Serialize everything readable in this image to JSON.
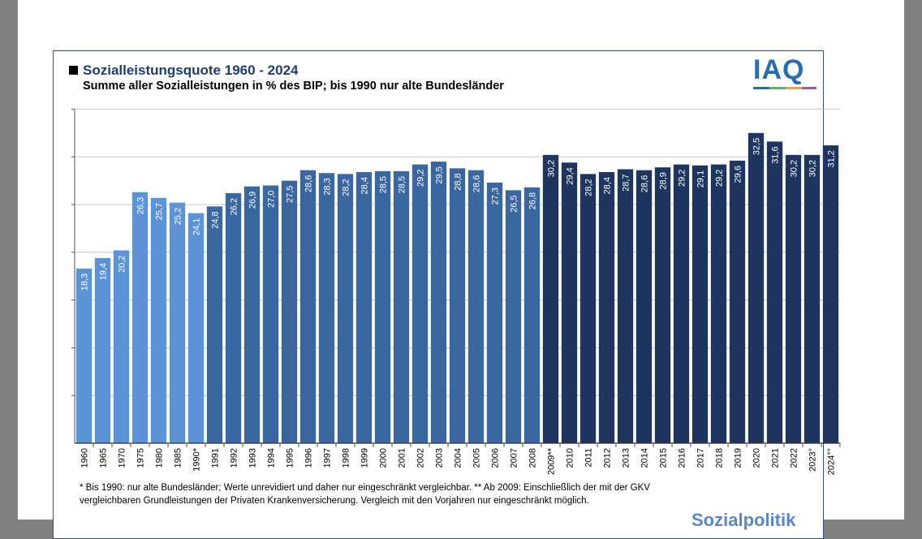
{
  "header": {
    "title": "Sozialleistungsquote 1960 - 2024",
    "subtitle": "Summe aller Sozialleistungen in % des BIP; bis 1990 nur alte Bundesländer",
    "logo_text": "IAQ"
  },
  "footnote": "* Bis 1990: nur alte Bundesländer; Werte unrevidiert und daher nur eingeschränkt vergleichbar. ** Ab 2009: Einschließlich der mit der GKV vergleichbaren Grundleistungen der Privaten Krankenversicherung. Vergleich mit den  Vorjahren nur eingeschränkt möglich.",
  "footer_logo": "Sozialpolitik",
  "colors": {
    "period1": "#5b93d6",
    "period2": "#3a679f",
    "period3": "#1e365f",
    "grid": "#c8c8c8",
    "frame": "#2f4f86"
  },
  "chart_data": {
    "type": "bar",
    "title": "Sozialleistungsquote 1960 - 2024",
    "subtitle": "Summe aller Sozialleistungen in % des BIP; bis 1990 nur alte Bundesländer",
    "xlabel": "",
    "ylabel": "",
    "ylim": [
      0,
      35
    ],
    "grid": true,
    "categories": [
      "1960",
      "1965",
      "1970",
      "1975",
      "1980",
      "1985",
      "1990*",
      "1991",
      "1992",
      "1993",
      "1994",
      "1995",
      "1996",
      "1997",
      "1998",
      "1999",
      "2000",
      "2001",
      "2002",
      "2003",
      "2004",
      "2005",
      "2006",
      "2007",
      "2008",
      "2009**",
      "2010",
      "2011",
      "2012",
      "2013",
      "2014",
      "2015",
      "2016",
      "2017",
      "2018",
      "2019",
      "2020",
      "2021",
      "2022",
      "2023°",
      "2024°°"
    ],
    "values": [
      18.3,
      19.4,
      20.2,
      26.3,
      25.7,
      25.2,
      24.1,
      24.8,
      26.2,
      26.9,
      27.0,
      27.5,
      28.6,
      28.3,
      28.2,
      28.4,
      28.5,
      28.5,
      29.2,
      29.5,
      28.8,
      28.6,
      27.3,
      26.5,
      26.8,
      30.2,
      29.4,
      28.2,
      28.4,
      28.7,
      28.6,
      28.9,
      29.2,
      29.1,
      29.2,
      29.6,
      32.5,
      31.6,
      30.2,
      30.2,
      31.2
    ],
    "value_labels": [
      "18,3",
      "19,4",
      "20,2",
      "26,3",
      "25,7",
      "25,2",
      "24,1",
      "24,8",
      "26,2",
      "26,9",
      "27,0",
      "27,5",
      "28,6",
      "28,3",
      "28,2",
      "28,4",
      "28,5",
      "28,5",
      "29,2",
      "29,5",
      "28,8",
      "28,6",
      "27,3",
      "26,5",
      "26,8",
      "30,2",
      "29,4",
      "28,2",
      "28,4",
      "28,7",
      "28,6",
      "28,9",
      "29,2",
      "29,1",
      "29,2",
      "29,6",
      "32,5",
      "31,6",
      "30,2",
      "30,2",
      "31,2"
    ],
    "groups": [
      1,
      1,
      1,
      1,
      1,
      1,
      1,
      2,
      2,
      2,
      2,
      2,
      2,
      2,
      2,
      2,
      2,
      2,
      2,
      2,
      2,
      2,
      2,
      2,
      2,
      3,
      3,
      3,
      3,
      3,
      3,
      3,
      3,
      3,
      3,
      3,
      3,
      3,
      3,
      3,
      3
    ]
  }
}
